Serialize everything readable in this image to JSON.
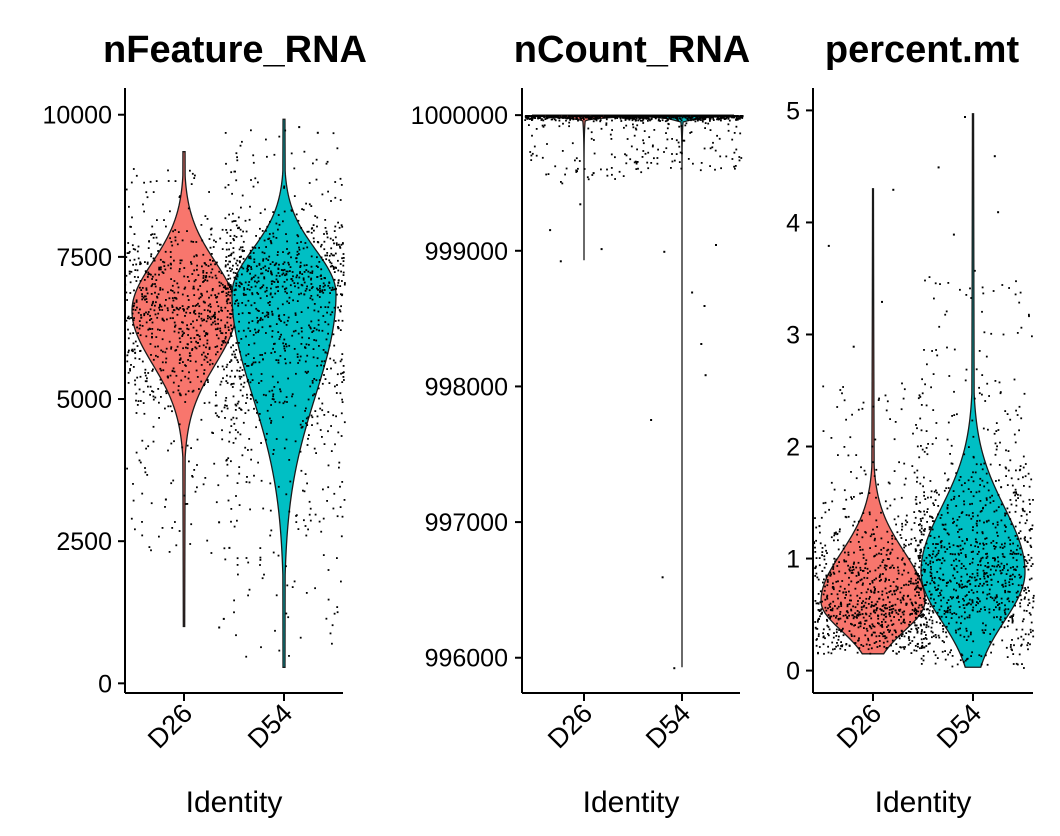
{
  "chart_data": [
    {
      "type": "violin",
      "title": "nFeature_RNA",
      "xlabel": "Identity",
      "categories": [
        "D26",
        "D54"
      ],
      "colors": [
        "#F8766D",
        "#00BFC4"
      ],
      "y_ticks": [
        0,
        2500,
        5000,
        7500,
        10000
      ],
      "y_tick_labels": [
        "0",
        "2500",
        "5000",
        "7500",
        "10000"
      ],
      "ylim": [
        -170,
        10470
      ],
      "groups": [
        {
          "name": "D26",
          "min": 1000,
          "max": 9350,
          "median": 6550,
          "q1": 5950,
          "q3": 7100,
          "n_points": 900,
          "jitter_range": [
            2300,
            9100
          ],
          "outliers": [
            1000,
            1150,
            2400,
            2850,
            3250
          ]
        },
        {
          "name": "D54",
          "min": 280,
          "max": 9920,
          "median": 6850,
          "q1": 5700,
          "q3": 7350,
          "n_points": 1000,
          "jitter_range": [
            300,
            9800
          ],
          "outliers": [
            9700,
            9800
          ]
        }
      ]
    },
    {
      "type": "violin",
      "title": "nCount_RNA",
      "xlabel": "Identity",
      "categories": [
        "D26",
        "D54"
      ],
      "colors": [
        "#F8766D",
        "#00BFC4"
      ],
      "y_ticks": [
        996000,
        997000,
        998000,
        999000,
        1000000
      ],
      "y_tick_labels": [
        "996000",
        "997000",
        "998000",
        "999000",
        "1000000"
      ],
      "ylim": [
        995740,
        1000200
      ],
      "groups": [
        {
          "name": "D26",
          "min": 998930,
          "max": 1000000,
          "median": 1000000,
          "q1": 999990,
          "q3": 1000000,
          "n_points": 500,
          "jitter_range": [
            999500,
            1000000
          ],
          "outliers": [
            998930,
            999020,
            999160,
            999350,
            999580
          ]
        },
        {
          "name": "D54",
          "min": 995930,
          "max": 1000000,
          "median": 1000000,
          "q1": 999990,
          "q3": 1000000,
          "n_points": 600,
          "jitter_range": [
            999600,
            1000000
          ],
          "outliers": [
            995930,
            996600,
            997760,
            998090,
            998320,
            998600,
            998700,
            999000,
            999050
          ]
        }
      ]
    },
    {
      "type": "violin",
      "title": "percent.mt",
      "xlabel": "Identity",
      "categories": [
        "D26",
        "D54"
      ],
      "colors": [
        "#F8766D",
        "#00BFC4"
      ],
      "y_ticks": [
        0,
        1,
        2,
        3,
        4,
        5
      ],
      "y_tick_labels": [
        "0",
        "1",
        "2",
        "3",
        "4",
        "5"
      ],
      "ylim": [
        -0.2,
        5.2
      ],
      "groups": [
        {
          "name": "D26",
          "min": 0.15,
          "max": 4.3,
          "median": 0.62,
          "q1": 0.45,
          "q3": 0.9,
          "n_points": 900,
          "jitter_range": [
            0.1,
            2.6
          ],
          "outliers": [
            2.9,
            3.3,
            3.8,
            4.3
          ]
        },
        {
          "name": "D54",
          "min": 0.03,
          "max": 4.97,
          "median": 0.88,
          "q1": 0.6,
          "q3": 1.25,
          "n_points": 1000,
          "jitter_range": [
            0.05,
            3.6
          ],
          "outliers": [
            3.9,
            4.1,
            4.5,
            4.6,
            4.95
          ]
        }
      ]
    }
  ]
}
